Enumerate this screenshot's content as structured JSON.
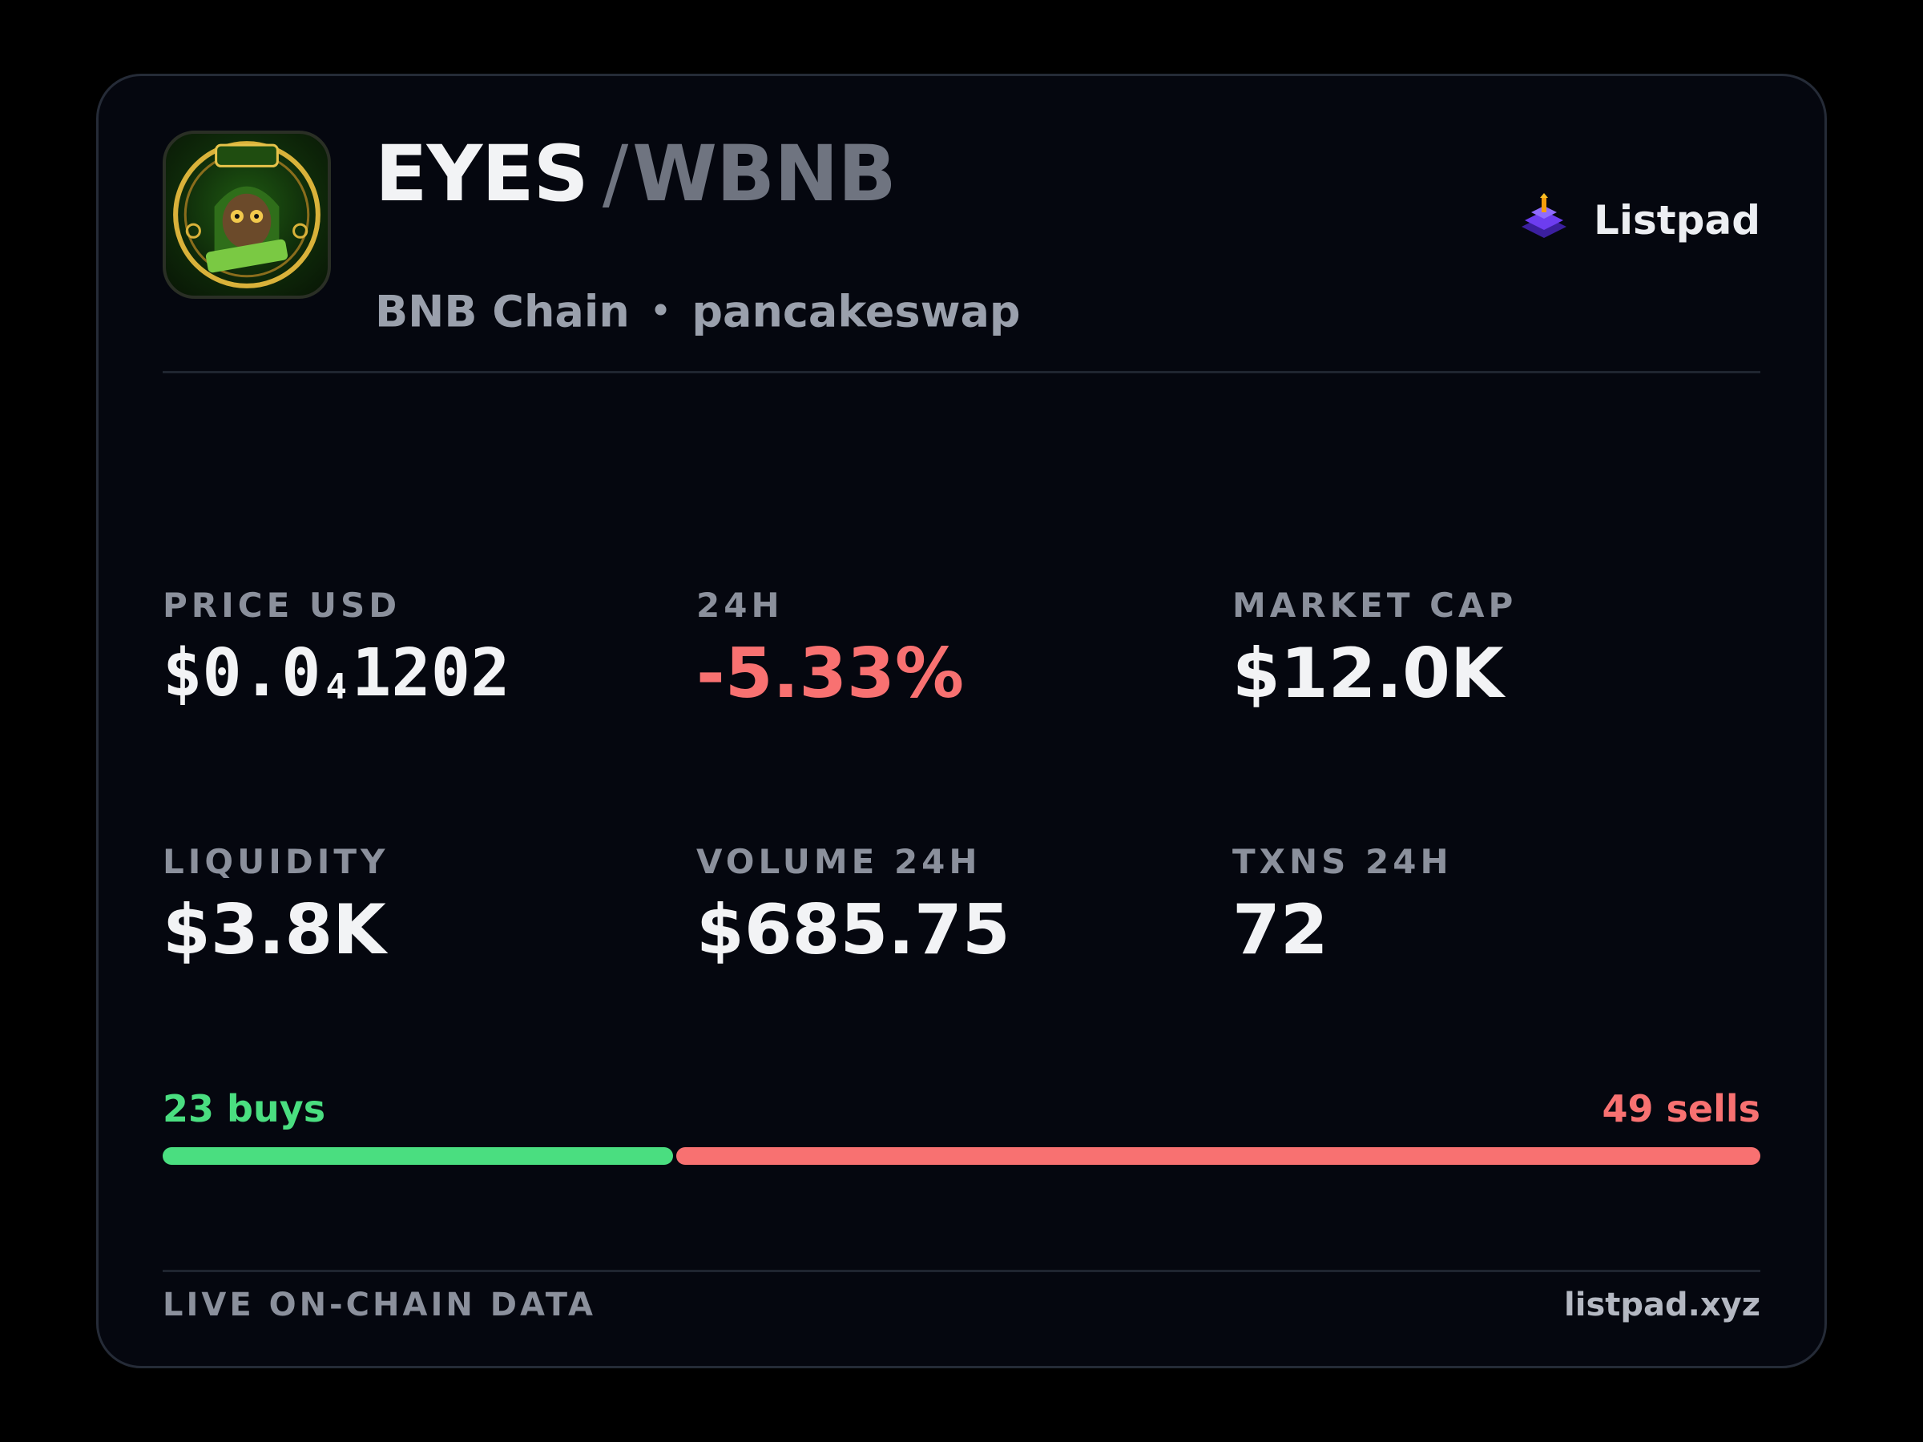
{
  "header": {
    "base_token": "EYES",
    "separator": "/",
    "quote_token": "WBNB",
    "chain": "BNB Chain",
    "dot": "•",
    "dex": "pancakeswap",
    "brand_name": "Listpad",
    "brand_icon": "listpad-logo-icon",
    "token_logo": "eyes-token-logo"
  },
  "stats": {
    "price": {
      "label": "PRICE USD",
      "prefix": "$0.0",
      "zero_count": "4",
      "digits": "1202"
    },
    "change": {
      "label": "24H",
      "value": "-5.33%"
    },
    "market_cap": {
      "label": "MARKET CAP",
      "value": "$12.0K"
    },
    "liquidity": {
      "label": "LIQUIDITY",
      "value": "$3.8K"
    },
    "volume": {
      "label": "VOLUME 24H",
      "value": "$685.75"
    },
    "txns": {
      "label": "TXNS 24H",
      "value": "72"
    }
  },
  "trades": {
    "buys_label": "23 buys",
    "sells_label": "49 sells",
    "buys": 23,
    "sells": 49
  },
  "footer": {
    "left": "LIVE ON-CHAIN DATA",
    "right": "listpad.xyz"
  },
  "colors": {
    "background": "#05070f",
    "positive": "#4ade80",
    "negative": "#f87171",
    "muted": "#8b909c"
  }
}
